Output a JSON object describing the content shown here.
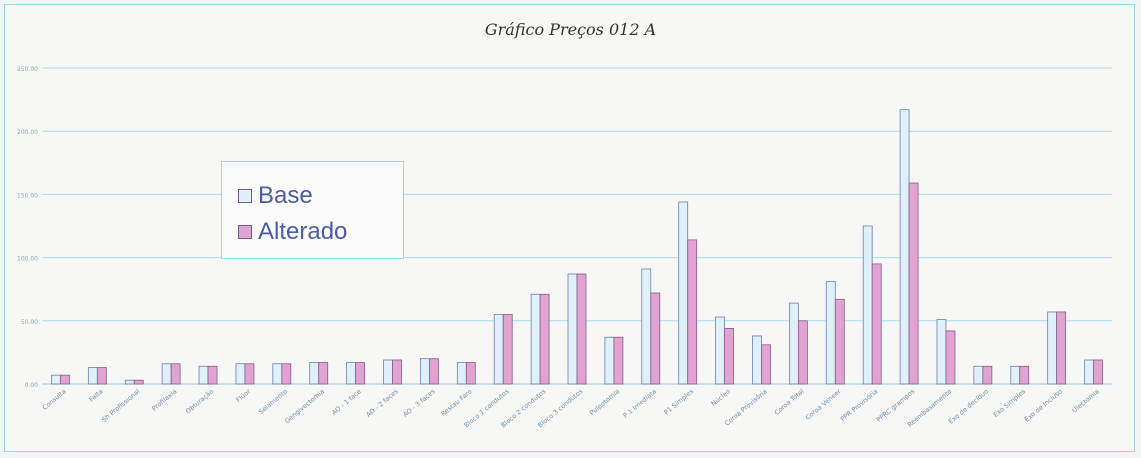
{
  "chart_data": {
    "type": "bar",
    "title": "Gráfico Preços 012 A",
    "ylim": [
      0,
      250
    ],
    "yticks": [
      "0.00",
      "50.00",
      "100.00",
      "150.00",
      "200.00",
      "250.00"
    ],
    "categories": [
      "Consulta",
      "Falta",
      "Sh Profissional",
      "Profilaxia",
      "Obturação",
      "Flúor",
      "Selamento",
      "Gengivectomia",
      "AO - 1 face",
      "AO - 2 faces",
      "AO - 3 faces",
      "Restau Faro",
      "Bloco 1 condutos",
      "Bloco 2 condutos",
      "Bloco 3 condutos",
      "Pulpotomia",
      "P 1 Imediata",
      "P1 Simples",
      "Núcleo",
      "Coroa Provisória",
      "Coroa Total",
      "Coroa Veneer",
      "PPR Provisória",
      "PPRC grampos",
      "Reembasamento",
      "Exo de decíduo",
      "Exo Simples",
      "Exo de Incluso",
      "Ulectomia"
    ],
    "series": [
      {
        "name": "Base",
        "color": "#dff0fb",
        "values": [
          7,
          13,
          3,
          16,
          14,
          16,
          16,
          17,
          17,
          19,
          20,
          17,
          55,
          71,
          87,
          37,
          91,
          144,
          53,
          38,
          64,
          81,
          125,
          217,
          51,
          14,
          14,
          57,
          19
        ]
      },
      {
        "name": "Alterado",
        "color": "#e0a3d2",
        "values": [
          7,
          13,
          3,
          16,
          14,
          16,
          16,
          17,
          17,
          19,
          20,
          17,
          55,
          71,
          87,
          37,
          72,
          114,
          44,
          31,
          50,
          67,
          95,
          159,
          42,
          14,
          14,
          57,
          19
        ]
      }
    ],
    "grid": true,
    "legend_position": "upper-left"
  }
}
